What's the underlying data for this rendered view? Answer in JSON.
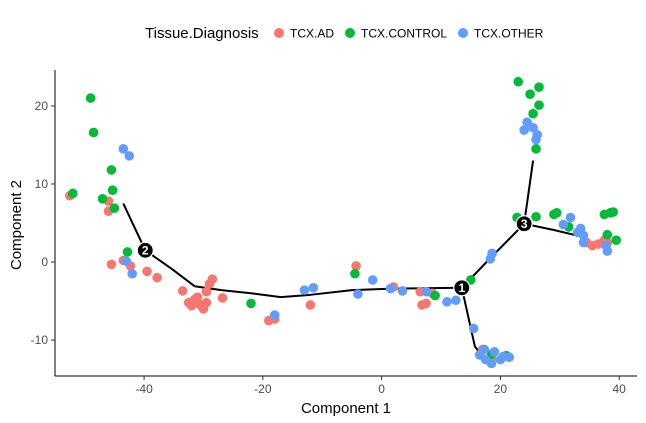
{
  "chart_data": {
    "type": "scatter",
    "xlabel": "Component 1",
    "ylabel": "Component 2",
    "xlim": [
      -55,
      43
    ],
    "ylim": [
      -14.6,
      24.6
    ],
    "xticks": [
      -40,
      -20,
      0,
      20,
      40
    ],
    "yticks": [
      -10,
      0,
      10,
      20
    ],
    "grid": false,
    "legend": {
      "title": "Tissue.Diagnosis",
      "placement": "top",
      "entries": [
        "TCX.AD",
        "TCX.CONTROL",
        "TCX.OTHER"
      ]
    },
    "colors": {
      "TCX.AD": "#F8766D",
      "TCX.CONTROL": "#00BA38",
      "TCX.OTHER": "#619CFF"
    },
    "trajectory": [
      [
        [
          -43.5,
          7.5
        ],
        [
          -39.8,
          1.5
        ],
        [
          -35.3,
          -0.9
        ],
        [
          -31.5,
          -3.1
        ]
      ],
      [
        [
          -31.5,
          -3.1
        ],
        [
          -27,
          -3.6
        ],
        [
          -22,
          -4
        ],
        [
          -17,
          -4.5
        ],
        [
          -12,
          -4.2
        ],
        [
          -5,
          -3.6
        ],
        [
          2,
          -3.4
        ],
        [
          13.5,
          -3.3
        ]
      ],
      [
        [
          13.5,
          -3.3
        ],
        [
          18.3,
          0.5
        ],
        [
          24,
          4.9
        ]
      ],
      [
        [
          13.5,
          -3.3
        ],
        [
          15.7,
          -10.8
        ],
        [
          16.7,
          -11.8
        ]
      ],
      [
        [
          24,
          4.9
        ],
        [
          25.5,
          13
        ]
      ],
      [
        [
          24,
          4.9
        ],
        [
          29,
          4.1
        ],
        [
          34,
          3.2
        ]
      ]
    ],
    "branch_points": [
      {
        "label": "1",
        "x": 13.5,
        "y": -3.3
      },
      {
        "label": "2",
        "x": -39.8,
        "y": 1.5
      },
      {
        "label": "3",
        "x": 24,
        "y": 4.9
      }
    ],
    "series": [
      {
        "name": "TCX.AD",
        "points": [
          [
            -52.5,
            8.5
          ],
          [
            -46,
            7.8
          ],
          [
            -46,
            6.5
          ],
          [
            -45.5,
            -0.3
          ],
          [
            -43.5,
            0.2
          ],
          [
            -42.3,
            -0.5
          ],
          [
            -39.5,
            -1.2
          ],
          [
            -37.8,
            -2
          ],
          [
            -33.5,
            -3.7
          ],
          [
            -32.5,
            -5.2
          ],
          [
            -32,
            -5.6
          ],
          [
            -31.5,
            -4.8
          ],
          [
            -31,
            -4.5
          ],
          [
            -30.5,
            -5.5
          ],
          [
            -30,
            -6
          ],
          [
            -29.5,
            -5.2
          ],
          [
            -29.5,
            -3.8
          ],
          [
            -29,
            -2.8
          ],
          [
            -28.5,
            -2.2
          ],
          [
            -26.8,
            -4.6
          ],
          [
            -19,
            -7.5
          ],
          [
            -18,
            -7.3
          ],
          [
            -12,
            -5.5
          ],
          [
            -4.3,
            -0.5
          ],
          [
            2,
            -3.2
          ],
          [
            6.5,
            -3.8
          ],
          [
            6.8,
            -5.5
          ],
          [
            7.5,
            -5.3
          ],
          [
            8.5,
            -4
          ],
          [
            17,
            -11.2
          ],
          [
            18.5,
            -12.3
          ],
          [
            34.5,
            2.5
          ],
          [
            35.5,
            2.1
          ],
          [
            36.5,
            2.3
          ],
          [
            37.5,
            2.8
          ],
          [
            38,
            2.5
          ]
        ]
      },
      {
        "name": "TCX.CONTROL",
        "points": [
          [
            -52,
            8.8
          ],
          [
            -49,
            21
          ],
          [
            -48.5,
            16.6
          ],
          [
            -47,
            8.1
          ],
          [
            -45.5,
            11.8
          ],
          [
            -45.3,
            9.2
          ],
          [
            -45,
            6.9
          ],
          [
            -42.8,
            1.3
          ],
          [
            -22,
            -5.3
          ],
          [
            -4.5,
            -1.5
          ],
          [
            9,
            -4.3
          ],
          [
            15,
            -2.3
          ],
          [
            18.5,
            -11.8
          ],
          [
            21,
            -12
          ],
          [
            22.8,
            5.7
          ],
          [
            25,
            21.5
          ],
          [
            25.5,
            19
          ],
          [
            26,
            5.8
          ],
          [
            26,
            14.5
          ],
          [
            26.5,
            22.4
          ],
          [
            26.5,
            20.1
          ],
          [
            29,
            6.1
          ],
          [
            29.5,
            6.3
          ],
          [
            31.5,
            4.5
          ],
          [
            37.5,
            6.1
          ],
          [
            38.5,
            6.3
          ],
          [
            39,
            6.4
          ],
          [
            38,
            3.5
          ],
          [
            39.5,
            2.8
          ],
          [
            23,
            23.1
          ]
        ]
      },
      {
        "name": "TCX.OTHER",
        "points": [
          [
            -43.5,
            14.5
          ],
          [
            -42.5,
            13.6
          ],
          [
            -43,
            0.1
          ],
          [
            -42,
            -1.5
          ],
          [
            -18,
            -6.8
          ],
          [
            -13,
            -3.6
          ],
          [
            -11.5,
            -3.3
          ],
          [
            -4,
            -4.1
          ],
          [
            -1.5,
            -2.3
          ],
          [
            1.5,
            -3.4
          ],
          [
            3.5,
            -3.7
          ],
          [
            7.5,
            -3.8
          ],
          [
            11,
            -5.1
          ],
          [
            12.5,
            -4.9
          ],
          [
            15.5,
            -8.5
          ],
          [
            16.5,
            -11.9
          ],
          [
            17.3,
            -11.2
          ],
          [
            17.5,
            -12.5
          ],
          [
            18.5,
            -13
          ],
          [
            19,
            -11.5
          ],
          [
            20.5,
            -12.1
          ],
          [
            20,
            -12.5
          ],
          [
            21.5,
            -12.2
          ],
          [
            18.3,
            0.4
          ],
          [
            18.6,
            1.1
          ],
          [
            23.6,
            5.2
          ],
          [
            24,
            16.9
          ],
          [
            24.5,
            17.9
          ],
          [
            25.5,
            17.2
          ],
          [
            26,
            15.7
          ],
          [
            26.2,
            16.3
          ],
          [
            33,
            3.8
          ],
          [
            33.5,
            4.3
          ],
          [
            34,
            3.4
          ],
          [
            34,
            2.5
          ],
          [
            38,
            1.4
          ],
          [
            37.8,
            2.1
          ],
          [
            31.8,
            5.7
          ],
          [
            30.6,
            4.8
          ]
        ]
      }
    ]
  }
}
